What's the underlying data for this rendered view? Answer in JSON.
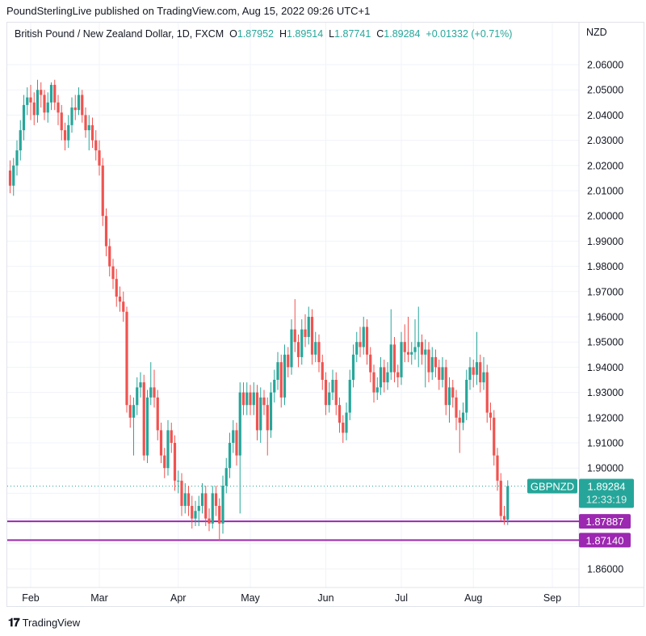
{
  "published": "PoundSterlingLive published on TradingView.com, Aug 15, 2022 09:26 UTC+1",
  "legend": {
    "title": "British Pound / New Zealand Dollar, 1D, FXCM",
    "o_label": "O",
    "o": "1.87952",
    "h_label": "H",
    "h": "1.89514",
    "l_label": "L",
    "l": "1.87741",
    "c_label": "C",
    "c": "1.89284",
    "change": "+0.01332 (+0.71%)"
  },
  "currency": "NZD",
  "footer": {
    "brand": "TradingView"
  },
  "colors": {
    "up": "#26a69a",
    "down": "#ef5350",
    "level": "#9c27b0",
    "grid": "#f0f3fa"
  },
  "chart_data": {
    "type": "candlestick",
    "symbol": "GBPNZD",
    "ylim": [
      1.855,
      2.0625
    ],
    "yticks": [
      "1.86000",
      "1.87000",
      "1.88000",
      "1.89000",
      "1.90000",
      "1.91000",
      "1.92000",
      "1.93000",
      "1.94000",
      "1.95000",
      "1.96000",
      "1.97000",
      "1.98000",
      "1.99000",
      "2.00000",
      "2.01000",
      "2.02000",
      "2.03000",
      "2.04000",
      "2.05000",
      "2.06000"
    ],
    "xticks": [
      {
        "label": "Feb",
        "date": "2022-02-01"
      },
      {
        "label": "Mar",
        "date": "2022-03-01"
      },
      {
        "label": "Apr",
        "date": "2022-04-01"
      },
      {
        "label": "May",
        "date": "2022-05-02"
      },
      {
        "label": "Jun",
        "date": "2022-06-01"
      },
      {
        "label": "Jul",
        "date": "2022-07-01"
      },
      {
        "label": "Aug",
        "date": "2022-08-01"
      },
      {
        "label": "Sep",
        "date": "2022-09-01"
      }
    ],
    "last_price": {
      "symbol_label": "GBPNZD",
      "price": "1.89284",
      "countdown": "12:33:19",
      "value": 1.89284
    },
    "levels": [
      {
        "label": "1.87887",
        "value": 1.87887
      },
      {
        "label": "1.87140",
        "value": 1.8714
      }
    ],
    "candles_columns": [
      "date",
      "open",
      "high",
      "low",
      "close"
    ],
    "candles": [
      [
        "2022-01-24",
        2.018,
        2.022,
        2.009,
        2.012
      ],
      [
        "2022-01-25",
        2.012,
        2.023,
        2.008,
        2.02
      ],
      [
        "2022-01-26",
        2.02,
        2.03,
        2.016,
        2.026
      ],
      [
        "2022-01-27",
        2.026,
        2.038,
        2.022,
        2.034
      ],
      [
        "2022-01-28",
        2.034,
        2.048,
        2.03,
        2.044
      ],
      [
        "2022-01-31",
        2.044,
        2.051,
        2.04,
        2.047
      ],
      [
        "2022-02-01",
        2.047,
        2.052,
        2.038,
        2.045
      ],
      [
        "2022-02-02",
        2.045,
        2.049,
        2.036,
        2.04
      ],
      [
        "2022-02-03",
        2.04,
        2.054,
        2.037,
        2.05
      ],
      [
        "2022-02-04",
        2.05,
        2.053,
        2.043,
        2.048
      ],
      [
        "2022-02-07",
        2.048,
        2.05,
        2.038,
        2.041
      ],
      [
        "2022-02-08",
        2.041,
        2.049,
        2.037,
        2.045
      ],
      [
        "2022-02-09",
        2.045,
        2.053,
        2.042,
        2.052
      ],
      [
        "2022-02-10",
        2.052,
        2.054,
        2.042,
        2.045
      ],
      [
        "2022-02-11",
        2.045,
        2.048,
        2.036,
        2.041
      ],
      [
        "2022-02-14",
        2.041,
        2.044,
        2.03,
        2.034
      ],
      [
        "2022-02-15",
        2.034,
        2.037,
        2.026,
        2.03
      ],
      [
        "2022-02-16",
        2.03,
        2.04,
        2.027,
        2.036
      ],
      [
        "2022-02-17",
        2.036,
        2.047,
        2.033,
        2.043
      ],
      [
        "2022-02-18",
        2.043,
        2.048,
        2.038,
        2.042
      ],
      [
        "2022-02-21",
        2.042,
        2.051,
        2.04,
        2.048
      ],
      [
        "2022-02-22",
        2.048,
        2.05,
        2.037,
        2.04
      ],
      [
        "2022-02-23",
        2.04,
        2.043,
        2.031,
        2.034
      ],
      [
        "2022-02-24",
        2.034,
        2.04,
        2.026,
        2.036
      ],
      [
        "2022-02-25",
        2.036,
        2.039,
        2.027,
        2.03
      ],
      [
        "2022-02-28",
        2.03,
        2.034,
        2.022,
        2.026
      ],
      [
        "2022-03-01",
        2.026,
        2.03,
        2.016,
        2.02
      ],
      [
        "2022-03-02",
        2.02,
        2.023,
        1.996,
        2.0
      ],
      [
        "2022-03-03",
        2.0,
        2.003,
        1.984,
        1.988
      ],
      [
        "2022-03-04",
        1.988,
        1.991,
        1.976,
        1.98
      ],
      [
        "2022-03-07",
        1.98,
        1.983,
        1.971,
        1.975
      ],
      [
        "2022-03-08",
        1.975,
        1.979,
        1.964,
        1.968
      ],
      [
        "2022-03-09",
        1.968,
        1.972,
        1.962,
        1.966
      ],
      [
        "2022-03-10",
        1.966,
        1.97,
        1.958,
        1.962
      ],
      [
        "2022-03-11",
        1.962,
        1.964,
        1.922,
        1.925
      ],
      [
        "2022-03-14",
        1.925,
        1.929,
        1.916,
        1.92
      ],
      [
        "2022-03-15",
        1.92,
        1.928,
        1.905,
        1.925
      ],
      [
        "2022-03-16",
        1.925,
        1.936,
        1.921,
        1.932
      ],
      [
        "2022-03-17",
        1.932,
        1.938,
        1.928,
        1.934
      ],
      [
        "2022-03-18",
        1.934,
        1.937,
        1.903,
        1.905
      ],
      [
        "2022-03-21",
        1.905,
        1.931,
        1.902,
        1.928
      ],
      [
        "2022-03-22",
        1.928,
        1.942,
        1.925,
        1.932
      ],
      [
        "2022-03-23",
        1.932,
        1.939,
        1.924,
        1.928
      ],
      [
        "2022-03-24",
        1.928,
        1.931,
        1.911,
        1.915
      ],
      [
        "2022-03-25",
        1.915,
        1.918,
        1.902,
        1.905
      ],
      [
        "2022-03-28",
        1.905,
        1.908,
        1.896,
        1.9
      ],
      [
        "2022-03-29",
        1.9,
        1.919,
        1.897,
        1.915
      ],
      [
        "2022-03-30",
        1.915,
        1.918,
        1.906,
        1.91
      ],
      [
        "2022-03-31",
        1.91,
        1.913,
        1.891,
        1.895
      ],
      [
        "2022-04-01",
        1.895,
        1.899,
        1.89,
        1.895
      ],
      [
        "2022-04-04",
        1.895,
        1.898,
        1.881,
        1.885
      ],
      [
        "2022-04-05",
        1.885,
        1.894,
        1.882,
        1.89
      ],
      [
        "2022-04-06",
        1.89,
        1.893,
        1.881,
        1.885
      ],
      [
        "2022-04-07",
        1.885,
        1.889,
        1.876,
        1.88
      ],
      [
        "2022-04-08",
        1.88,
        1.887,
        1.877,
        1.883
      ],
      [
        "2022-04-11",
        1.883,
        1.889,
        1.877,
        1.885
      ],
      [
        "2022-04-12",
        1.885,
        1.894,
        1.882,
        1.89
      ],
      [
        "2022-04-13",
        1.89,
        1.893,
        1.877,
        1.88
      ],
      [
        "2022-04-14",
        1.88,
        1.884,
        1.875,
        1.878
      ],
      [
        "2022-04-15",
        1.878,
        1.893,
        1.876,
        1.89
      ],
      [
        "2022-04-18",
        1.89,
        1.893,
        1.881,
        1.885
      ],
      [
        "2022-04-19",
        1.885,
        1.888,
        1.871,
        1.878
      ],
      [
        "2022-04-20",
        1.878,
        1.897,
        1.874,
        1.893
      ],
      [
        "2022-04-21",
        1.893,
        1.904,
        1.89,
        1.9
      ],
      [
        "2022-04-22",
        1.9,
        1.914,
        1.896,
        1.91
      ],
      [
        "2022-04-25",
        1.91,
        1.919,
        1.906,
        1.915
      ],
      [
        "2022-04-26",
        1.915,
        1.918,
        1.901,
        1.905
      ],
      [
        "2022-04-27",
        1.905,
        1.934,
        1.882,
        1.93
      ],
      [
        "2022-04-28",
        1.93,
        1.934,
        1.921,
        1.925
      ],
      [
        "2022-04-29",
        1.925,
        1.934,
        1.921,
        1.93
      ],
      [
        "2022-05-02",
        1.93,
        1.933,
        1.921,
        1.925
      ],
      [
        "2022-05-03",
        1.925,
        1.934,
        1.921,
        1.93
      ],
      [
        "2022-05-04",
        1.93,
        1.933,
        1.911,
        1.915
      ],
      [
        "2022-05-05",
        1.915,
        1.932,
        1.91,
        1.928
      ],
      [
        "2022-05-06",
        1.928,
        1.931,
        1.921,
        1.925
      ],
      [
        "2022-05-09",
        1.925,
        1.928,
        1.905,
        1.915
      ],
      [
        "2022-05-10",
        1.915,
        1.934,
        1.912,
        1.93
      ],
      [
        "2022-05-11",
        1.93,
        1.939,
        1.926,
        1.935
      ],
      [
        "2022-05-12",
        1.935,
        1.946,
        1.931,
        1.942
      ],
      [
        "2022-05-13",
        1.942,
        1.945,
        1.924,
        1.928
      ],
      [
        "2022-05-16",
        1.928,
        1.949,
        1.925,
        1.945
      ],
      [
        "2022-05-17",
        1.945,
        1.948,
        1.936,
        1.94
      ],
      [
        "2022-05-18",
        1.94,
        1.959,
        1.937,
        1.955
      ],
      [
        "2022-05-19",
        1.955,
        1.967,
        1.946,
        1.95
      ],
      [
        "2022-05-20",
        1.95,
        1.953,
        1.94,
        1.944
      ],
      [
        "2022-05-23",
        1.944,
        1.959,
        1.941,
        1.955
      ],
      [
        "2022-05-24",
        1.955,
        1.961,
        1.948,
        1.952
      ],
      [
        "2022-05-25",
        1.952,
        1.964,
        1.949,
        1.96
      ],
      [
        "2022-05-26",
        1.96,
        1.963,
        1.941,
        1.945
      ],
      [
        "2022-05-27",
        1.945,
        1.954,
        1.942,
        1.95
      ],
      [
        "2022-05-30",
        1.95,
        1.953,
        1.938,
        1.942
      ],
      [
        "2022-05-31",
        1.942,
        1.945,
        1.931,
        1.935
      ],
      [
        "2022-06-01",
        1.935,
        1.938,
        1.921,
        1.925
      ],
      [
        "2022-06-02",
        1.925,
        1.934,
        1.922,
        1.93
      ],
      [
        "2022-06-03",
        1.93,
        1.939,
        1.927,
        1.935
      ],
      [
        "2022-06-06",
        1.935,
        1.938,
        1.921,
        1.925
      ],
      [
        "2022-06-07",
        1.925,
        1.928,
        1.914,
        1.918
      ],
      [
        "2022-06-08",
        1.918,
        1.921,
        1.91,
        1.914
      ],
      [
        "2022-06-09",
        1.914,
        1.926,
        1.911,
        1.922
      ],
      [
        "2022-06-10",
        1.922,
        1.939,
        1.919,
        1.935
      ],
      [
        "2022-06-13",
        1.935,
        1.949,
        1.932,
        1.945
      ],
      [
        "2022-06-14",
        1.945,
        1.954,
        1.942,
        1.95
      ],
      [
        "2022-06-15",
        1.95,
        1.956,
        1.944,
        1.948
      ],
      [
        "2022-06-16",
        1.948,
        1.96,
        1.945,
        1.956
      ],
      [
        "2022-06-17",
        1.956,
        1.959,
        1.941,
        1.945
      ],
      [
        "2022-06-20",
        1.945,
        1.948,
        1.934,
        1.938
      ],
      [
        "2022-06-21",
        1.938,
        1.941,
        1.926,
        1.93
      ],
      [
        "2022-06-22",
        1.93,
        1.936,
        1.927,
        1.932
      ],
      [
        "2022-06-23",
        1.932,
        1.944,
        1.929,
        1.94
      ],
      [
        "2022-06-24",
        1.94,
        1.943,
        1.93,
        1.934
      ],
      [
        "2022-06-27",
        1.934,
        1.942,
        1.931,
        1.938
      ],
      [
        "2022-06-28",
        1.938,
        1.963,
        1.935,
        1.949
      ],
      [
        "2022-06-29",
        1.949,
        1.952,
        1.934,
        1.938
      ],
      [
        "2022-06-30",
        1.938,
        1.941,
        1.932,
        1.936
      ],
      [
        "2022-07-01",
        1.936,
        1.954,
        1.933,
        1.95
      ],
      [
        "2022-07-04",
        1.95,
        1.957,
        1.942,
        1.946
      ],
      [
        "2022-07-05",
        1.946,
        1.96,
        1.942,
        1.945
      ],
      [
        "2022-07-06",
        1.945,
        1.95,
        1.941,
        1.946
      ],
      [
        "2022-07-07",
        1.946,
        1.959,
        1.943,
        1.948
      ],
      [
        "2022-07-08",
        1.948,
        1.964,
        1.94,
        1.95
      ],
      [
        "2022-07-11",
        1.95,
        1.953,
        1.941,
        1.945
      ],
      [
        "2022-07-12",
        1.945,
        1.951,
        1.932,
        1.947
      ],
      [
        "2022-07-13",
        1.947,
        1.95,
        1.934,
        1.938
      ],
      [
        "2022-07-14",
        1.938,
        1.948,
        1.935,
        1.944
      ],
      [
        "2022-07-15",
        1.944,
        1.947,
        1.936,
        1.94
      ],
      [
        "2022-07-18",
        1.94,
        1.943,
        1.931,
        1.935
      ],
      [
        "2022-07-19",
        1.935,
        1.944,
        1.932,
        1.94
      ],
      [
        "2022-07-20",
        1.94,
        1.943,
        1.921,
        1.925
      ],
      [
        "2022-07-21",
        1.925,
        1.936,
        1.918,
        1.932
      ],
      [
        "2022-07-22",
        1.932,
        1.935,
        1.924,
        1.928
      ],
      [
        "2022-07-25",
        1.928,
        1.931,
        1.915,
        1.92
      ],
      [
        "2022-07-26",
        1.92,
        1.923,
        1.906,
        1.918
      ],
      [
        "2022-07-27",
        1.918,
        1.926,
        1.915,
        1.922
      ],
      [
        "2022-07-28",
        1.922,
        1.939,
        1.919,
        1.935
      ],
      [
        "2022-07-29",
        1.935,
        1.944,
        1.931,
        1.94
      ],
      [
        "2022-08-01",
        1.94,
        1.943,
        1.932,
        1.937
      ],
      [
        "2022-08-02",
        1.937,
        1.954,
        1.933,
        1.942
      ],
      [
        "2022-08-03",
        1.942,
        1.945,
        1.93,
        1.934
      ],
      [
        "2022-08-04",
        1.934,
        1.944,
        1.931,
        1.938
      ],
      [
        "2022-08-05",
        1.938,
        1.941,
        1.918,
        1.922
      ],
      [
        "2022-08-08",
        1.922,
        1.926,
        1.915,
        1.92
      ],
      [
        "2022-08-09",
        1.92,
        1.923,
        1.901,
        1.905
      ],
      [
        "2022-08-10",
        1.905,
        1.908,
        1.891,
        1.895
      ],
      [
        "2022-08-11",
        1.895,
        1.898,
        1.879,
        1.881
      ],
      [
        "2022-08-12",
        1.881,
        1.885,
        1.8775,
        1.8795
      ],
      [
        "2022-08-15",
        1.87952,
        1.89514,
        1.87741,
        1.89284
      ]
    ]
  }
}
